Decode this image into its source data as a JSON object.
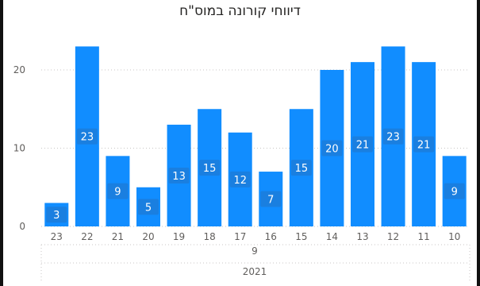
{
  "chart_data": {
    "type": "bar",
    "title": "דיווחי קורונה במוס\"ח",
    "categories": [
      "23",
      "22",
      "21",
      "20",
      "19",
      "18",
      "17",
      "16",
      "15",
      "14",
      "13",
      "12",
      "11",
      "10"
    ],
    "values": [
      3,
      23,
      9,
      5,
      13,
      15,
      12,
      7,
      15,
      20,
      21,
      23,
      21,
      9
    ],
    "month_label": "9",
    "year_label": "2021",
    "yticks": [
      0,
      10,
      20
    ],
    "ylim": [
      0,
      25
    ],
    "bar_color": "#118dff",
    "label_bg_color": "#1a7fe0",
    "grid": true
  }
}
